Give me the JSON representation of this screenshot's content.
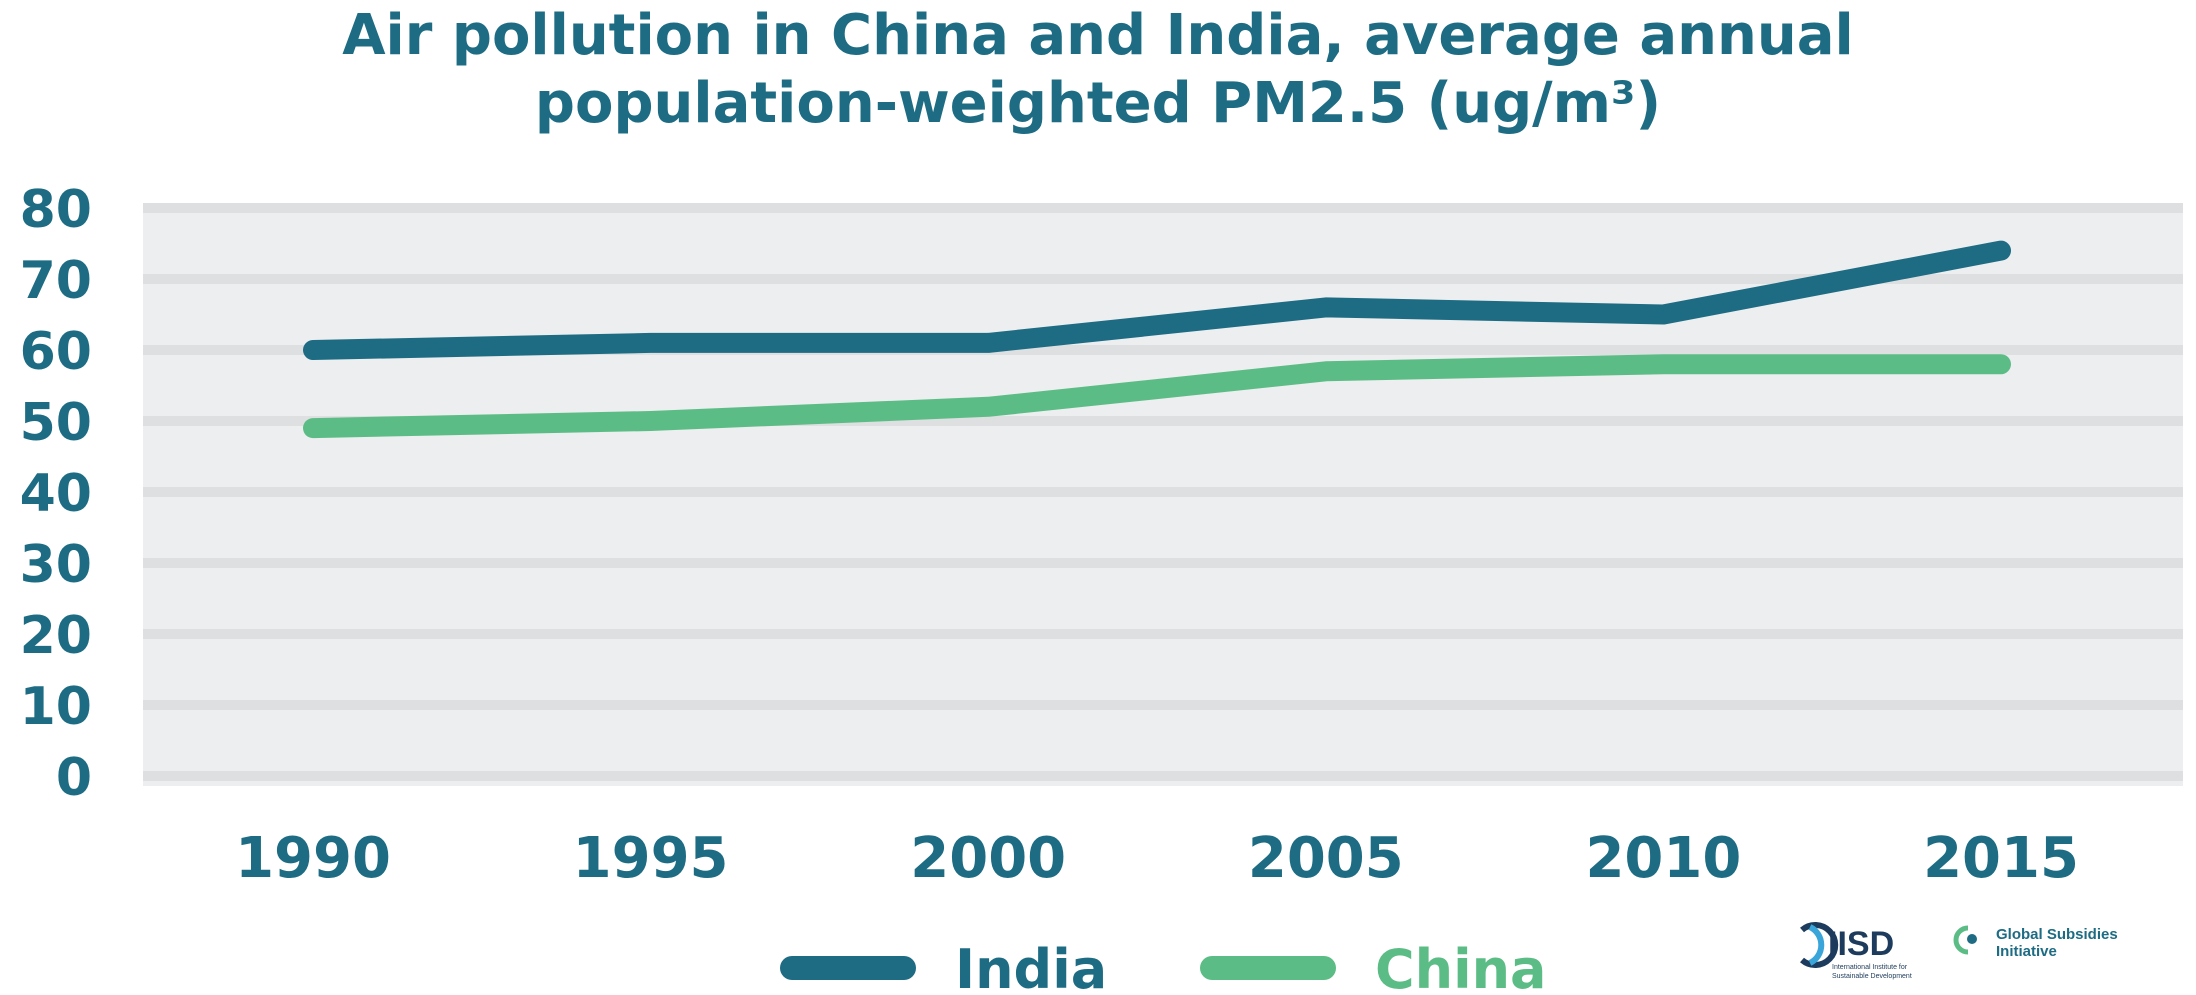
{
  "chart_data": {
    "type": "line",
    "title_line1": "Air pollution in China and India, average annual",
    "title_line2": "population-weighted PM2.5 (ug/m³)",
    "x": [
      "1990",
      "1995",
      "2000",
      "2005",
      "2010",
      "2015"
    ],
    "y_ticks": [
      0,
      10,
      20,
      30,
      40,
      50,
      60,
      70,
      80
    ],
    "ylim": [
      0,
      80
    ],
    "grid": true,
    "legend_position": "bottom-center",
    "series": [
      {
        "name": "India",
        "color": "#1d6c83",
        "values": [
          60,
          61,
          61,
          66,
          65,
          74
        ]
      },
      {
        "name": "China",
        "color": "#5bbd85",
        "values": [
          49,
          50,
          52,
          57,
          58,
          58
        ]
      }
    ]
  },
  "logos": {
    "iisd": {
      "name": "IISD",
      "subtitle_line1": "International Institute for",
      "subtitle_line2": "Sustainable Development"
    },
    "gsi": {
      "line1": "Global Subsidies",
      "line2": "Initiative"
    }
  },
  "colors": {
    "plot_bg": "#edeef0",
    "grid": "#dedfe1",
    "text": "#1d6c83",
    "accent": "#5bbd85"
  }
}
